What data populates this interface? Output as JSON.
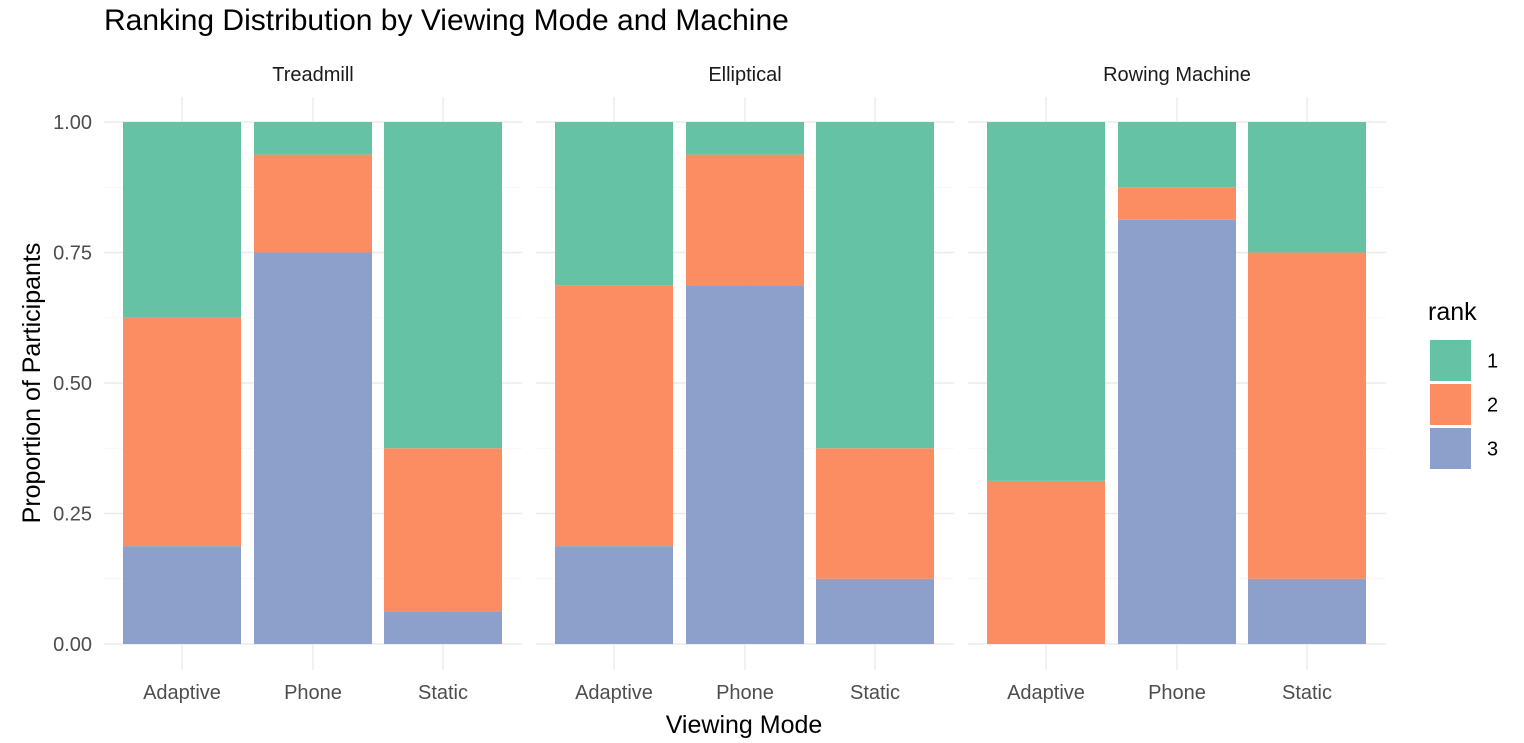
{
  "chart_data": {
    "type": "bar",
    "stacked": true,
    "title": "Ranking Distribution by Viewing Mode and Machine",
    "xlabel": "Viewing Mode",
    "ylabel": "Proportion of Participants",
    "ylim": [
      0,
      1
    ],
    "y_ticks": [
      "0.00",
      "0.25",
      "0.50",
      "0.75",
      "1.00"
    ],
    "y_tick_values": [
      0,
      0.25,
      0.5,
      0.75,
      1.0
    ],
    "grid": true,
    "legend": {
      "title": "rank",
      "position": "right",
      "entries": [
        "1",
        "2",
        "3"
      ]
    },
    "categories": [
      "Adaptive",
      "Phone",
      "Static"
    ],
    "colors": {
      "1": "#66c2a5",
      "2": "#fc8d62",
      "3": "#8da0cb"
    },
    "facets": [
      {
        "name": "Treadmill",
        "series": [
          {
            "name": "1",
            "values": [
              0.375,
              0.0625,
              0.625
            ]
          },
          {
            "name": "2",
            "values": [
              0.4375,
              0.1875,
              0.3125
            ]
          },
          {
            "name": "3",
            "values": [
              0.1875,
              0.75,
              0.0625
            ]
          }
        ]
      },
      {
        "name": "Elliptical",
        "series": [
          {
            "name": "1",
            "values": [
              0.3125,
              0.0625,
              0.625
            ]
          },
          {
            "name": "2",
            "values": [
              0.5,
              0.25,
              0.25
            ]
          },
          {
            "name": "3",
            "values": [
              0.1875,
              0.6875,
              0.125
            ]
          }
        ]
      },
      {
        "name": "Rowing Machine",
        "series": [
          {
            "name": "1",
            "values": [
              0.6875,
              0.125,
              0.25
            ]
          },
          {
            "name": "2",
            "values": [
              0.3125,
              0.0625,
              0.625
            ]
          },
          {
            "name": "3",
            "values": [
              0.0,
              0.8125,
              0.125
            ]
          }
        ]
      }
    ]
  }
}
